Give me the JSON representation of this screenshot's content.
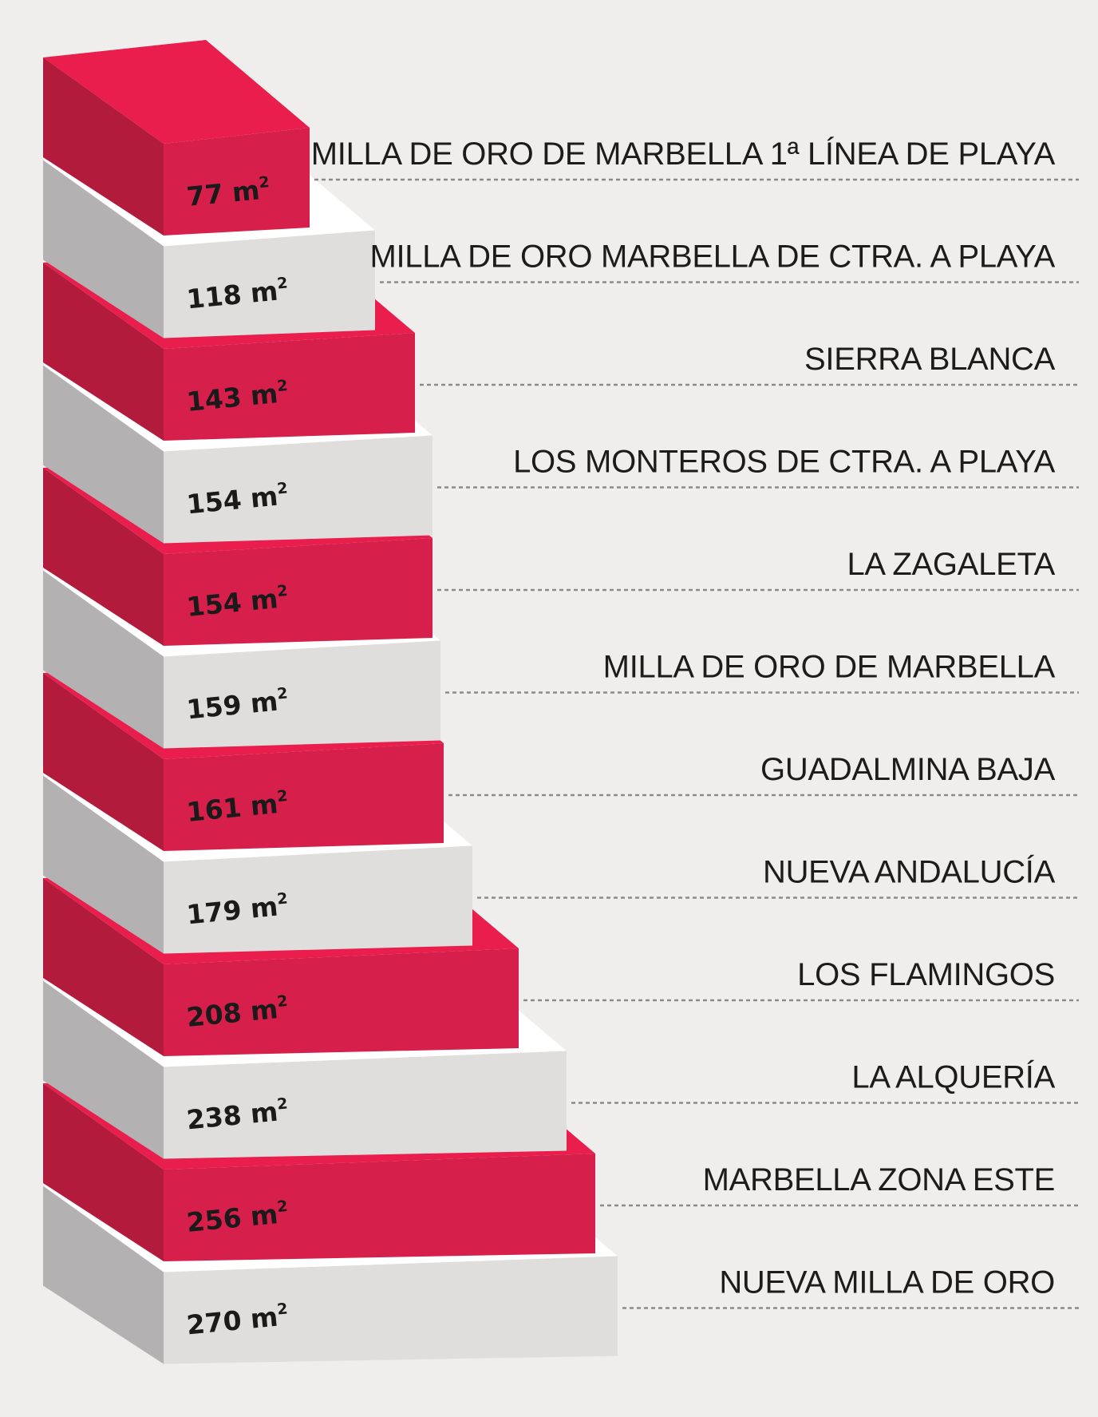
{
  "colors": {
    "background": "#efeeec",
    "red_front": "#d6204b",
    "red_side": "#b31b3c",
    "red_top": "#e91e4c",
    "grey_front": "#e0dedd",
    "grey_side": "#b4b1b2",
    "grey_top": "#ffffff"
  },
  "chart_data": {
    "type": "bar",
    "orientation": "stacked-3d-steps",
    "unit": "m²",
    "categories": [
      "MILLA DE ORO DE MARBELLA 1ª LÍNEA DE PLAYA",
      "MILLA DE ORO MARBELLA DE CTRA. A PLAYA",
      "SIERRA BLANCA",
      "LOS MONTEROS DE CTRA. A PLAYA",
      "LA ZAGALETA",
      "MILLA DE ORO DE MARBELLA",
      "GUADALMINA BAJA",
      "NUEVA ANDALUCÍA",
      "LOS FLAMINGOS",
      "LA ALQUERÍA",
      "MARBELLA ZONA ESTE",
      "NUEVA MILLA DE ORO"
    ],
    "values": [
      77,
      118,
      143,
      154,
      154,
      159,
      161,
      179,
      208,
      238,
      256,
      270
    ],
    "value_labels": [
      "77 m",
      "118 m",
      "143 m",
      "154 m",
      "154 m",
      "159 m",
      "161 m",
      "179 m",
      "208 m",
      "238 m",
      "256 m",
      "270 m"
    ],
    "unit_superscript": "2",
    "block_colors": [
      "red",
      "grey",
      "red",
      "grey",
      "red",
      "grey",
      "red",
      "grey",
      "red",
      "grey",
      "red",
      "grey"
    ],
    "title": "",
    "xlabel": "",
    "ylabel": "",
    "grid": false,
    "legend": "none"
  }
}
